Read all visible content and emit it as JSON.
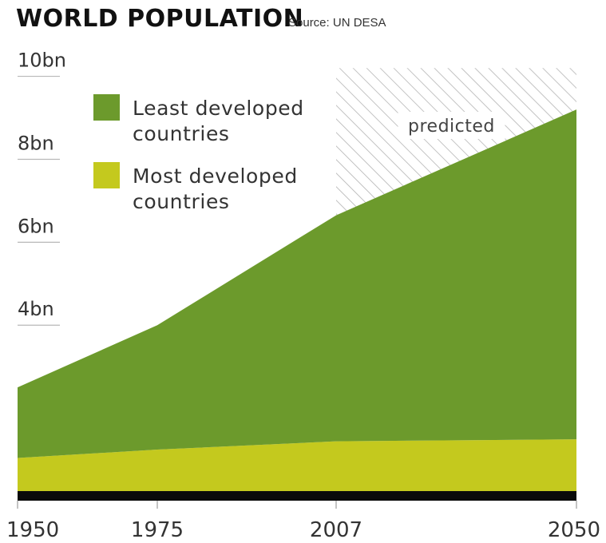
{
  "header": {
    "title": "WORLD POPULATION",
    "source": "Source: UN DESA"
  },
  "chart_data": {
    "type": "area",
    "stacked": true,
    "x": [
      1950,
      1975,
      2007,
      2050
    ],
    "xticks": [
      "1950",
      "1975",
      "2007",
      "2050"
    ],
    "yticks": [
      {
        "value": 4,
        "label": "4bn"
      },
      {
        "value": 6,
        "label": "6bn"
      },
      {
        "value": 8,
        "label": "8bn"
      },
      {
        "value": 10,
        "label": "10bn"
      }
    ],
    "ylim": [
      0,
      10.3
    ],
    "units": "billion",
    "series": [
      {
        "name": "Most developed countries",
        "color": "#c4c91e",
        "values": [
          0.8,
          1.0,
          1.2,
          1.25
        ]
      },
      {
        "name": "Least developed countries",
        "color": "#6c9a2c",
        "values": [
          1.7,
          3.0,
          5.45,
          7.95
        ]
      }
    ],
    "legend": {
      "placement": "top-left",
      "items": [
        {
          "lines": [
            "Least developed",
            "countries"
          ],
          "color": "#6c9a2c"
        },
        {
          "lines": [
            "Most developed",
            "countries"
          ],
          "color": "#c4c91e"
        }
      ]
    },
    "annotations": [
      {
        "text": "predicted",
        "x_from": 2007,
        "x_to": 2050,
        "style": "hatched"
      }
    ],
    "baseline_color": "#0a0a0a",
    "grid": false
  }
}
